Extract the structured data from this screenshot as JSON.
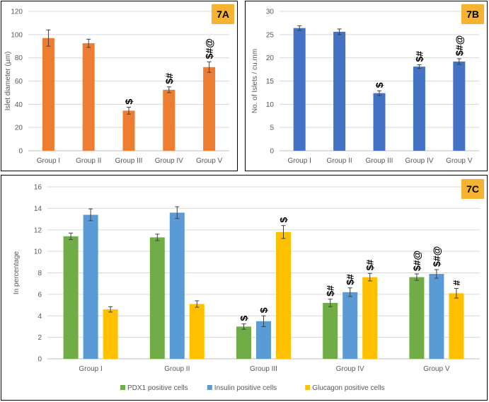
{
  "chart_data": [
    {
      "id": "A",
      "type": "bar",
      "panel_label": "7A",
      "ylabel": "Islet diameter (µm)",
      "categories": [
        "Group I",
        "Group II",
        "Group III",
        "Group IV",
        "Group V"
      ],
      "values": [
        97,
        92.5,
        34.5,
        52.5,
        72
      ],
      "errors": [
        7,
        3.5,
        3,
        2.5,
        4.5
      ],
      "markers": [
        "",
        "",
        "$",
        "$#",
        "$#@"
      ],
      "color": "#ed7d31",
      "ylim": [
        0,
        120
      ],
      "yticks": [
        0,
        20,
        40,
        60,
        80,
        100,
        120
      ],
      "grid": true
    },
    {
      "id": "B",
      "type": "bar",
      "panel_label": "7B",
      "ylabel": "No. of Islets / cu.mm",
      "categories": [
        "Group I",
        "Group II",
        "Group III",
        "Group IV",
        "Group V"
      ],
      "values": [
        26.4,
        25.6,
        12.4,
        18.1,
        19.2
      ],
      "errors": [
        0.5,
        0.6,
        0.5,
        0.4,
        0.6
      ],
      "markers": [
        "",
        "",
        "$",
        "$#",
        "$#@"
      ],
      "color": "#4472c4",
      "ylim": [
        0,
        30
      ],
      "yticks": [
        0,
        5,
        10,
        15,
        20,
        25,
        30
      ],
      "grid": true
    },
    {
      "id": "C",
      "type": "bar",
      "panel_label": "7C",
      "ylabel": "In percentage",
      "categories": [
        "Group I",
        "Group II",
        "Group III",
        "Group IV",
        "Group V"
      ],
      "series": [
        {
          "name": "PDX1 positive cells",
          "color": "#70ad47",
          "values": [
            11.4,
            11.3,
            3.0,
            5.2,
            7.6
          ],
          "errors": [
            0.3,
            0.3,
            0.25,
            0.35,
            0.3
          ],
          "markers": [
            "",
            "",
            "$",
            "$#",
            "$#@"
          ]
        },
        {
          "name": "Insulin positive cells",
          "color": "#5b9bd5",
          "values": [
            13.4,
            13.6,
            3.5,
            6.2,
            7.9
          ],
          "errors": [
            0.55,
            0.55,
            0.5,
            0.4,
            0.4
          ],
          "markers": [
            "",
            "",
            "$",
            "$#",
            "$#@"
          ]
        },
        {
          "name": "Glucagon positive cells",
          "color": "#ffc000",
          "values": [
            4.6,
            5.1,
            11.8,
            7.6,
            6.1
          ],
          "errors": [
            0.25,
            0.3,
            0.6,
            0.35,
            0.45
          ],
          "markers": [
            "",
            "",
            "$",
            "$#",
            "#"
          ]
        }
      ],
      "ylim": [
        0,
        16
      ],
      "yticks": [
        0,
        2,
        4,
        6,
        8,
        10,
        12,
        14,
        16
      ],
      "grid": true,
      "legend_position": "bottom"
    }
  ]
}
